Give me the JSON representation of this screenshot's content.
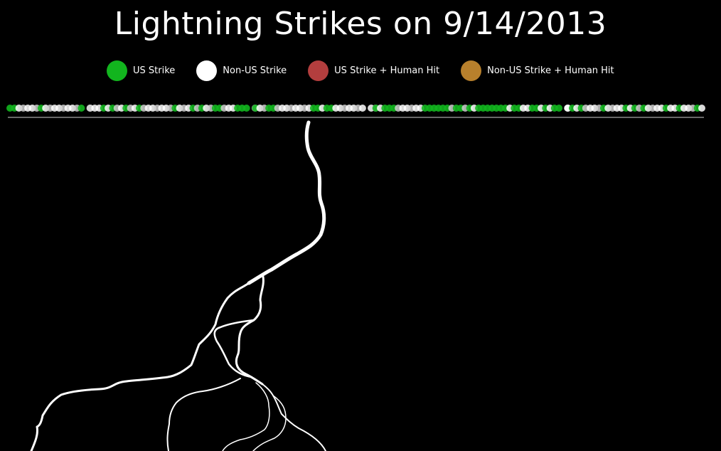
{
  "chart_data": {
    "type": "scatter",
    "title": "Lightning Strikes on 9/14/2013",
    "legend": [
      {
        "label": "US Strike",
        "color": "#12b51e"
      },
      {
        "label": "Non-US Strike",
        "color": "#ffffff"
      },
      {
        "label": "US Strike + Human Hit",
        "color": "#b33e3e"
      },
      {
        "label": "Non-US Strike + Human Hit",
        "color": "#b8802c"
      }
    ],
    "strikes": [
      "US",
      "US",
      "non",
      "non",
      "non",
      "non",
      "non",
      "US",
      "non",
      "non",
      "non",
      "non",
      "non",
      "non",
      "non",
      "non",
      "US",
      "non",
      "non",
      "non",
      "non",
      "US",
      "non",
      "US",
      "non",
      "non",
      "US",
      "non",
      "non",
      "US",
      "non",
      "non",
      "non",
      "non",
      "non",
      "non",
      "non",
      "US",
      "non",
      "non",
      "non",
      "US",
      "non",
      "US",
      "non",
      "non",
      "US",
      "US",
      "non",
      "non",
      "non",
      "US",
      "US",
      "US",
      "non",
      "US",
      "non",
      "non",
      "US",
      "US",
      "non",
      "non",
      "non",
      "non",
      "non",
      "non",
      "non",
      "non",
      "US",
      "US",
      "non",
      "US",
      "US",
      "non",
      "non",
      "non",
      "non",
      "non",
      "non",
      "non",
      "non",
      "non",
      "US",
      "non",
      "US",
      "US",
      "US",
      "non",
      "non",
      "non",
      "non",
      "non",
      "non",
      "US",
      "US",
      "US",
      "US",
      "US",
      "US",
      "non",
      "US",
      "US",
      "non",
      "US",
      "non",
      "US",
      "US",
      "US",
      "US",
      "US",
      "US",
      "US",
      "non",
      "US",
      "US",
      "non",
      "non",
      "US",
      "US",
      "non",
      "US",
      "non",
      "US",
      "US",
      "non",
      "non",
      "US",
      "non",
      "US",
      "non",
      "non",
      "non",
      "non",
      "US",
      "non",
      "non",
      "non",
      "non",
      "US",
      "non",
      "US",
      "non",
      "US",
      "non",
      "non",
      "non",
      "non",
      "US",
      "non",
      "non",
      "US",
      "non",
      "non",
      "non",
      "US",
      "non"
    ],
    "highlighted_strike": "US"
  }
}
